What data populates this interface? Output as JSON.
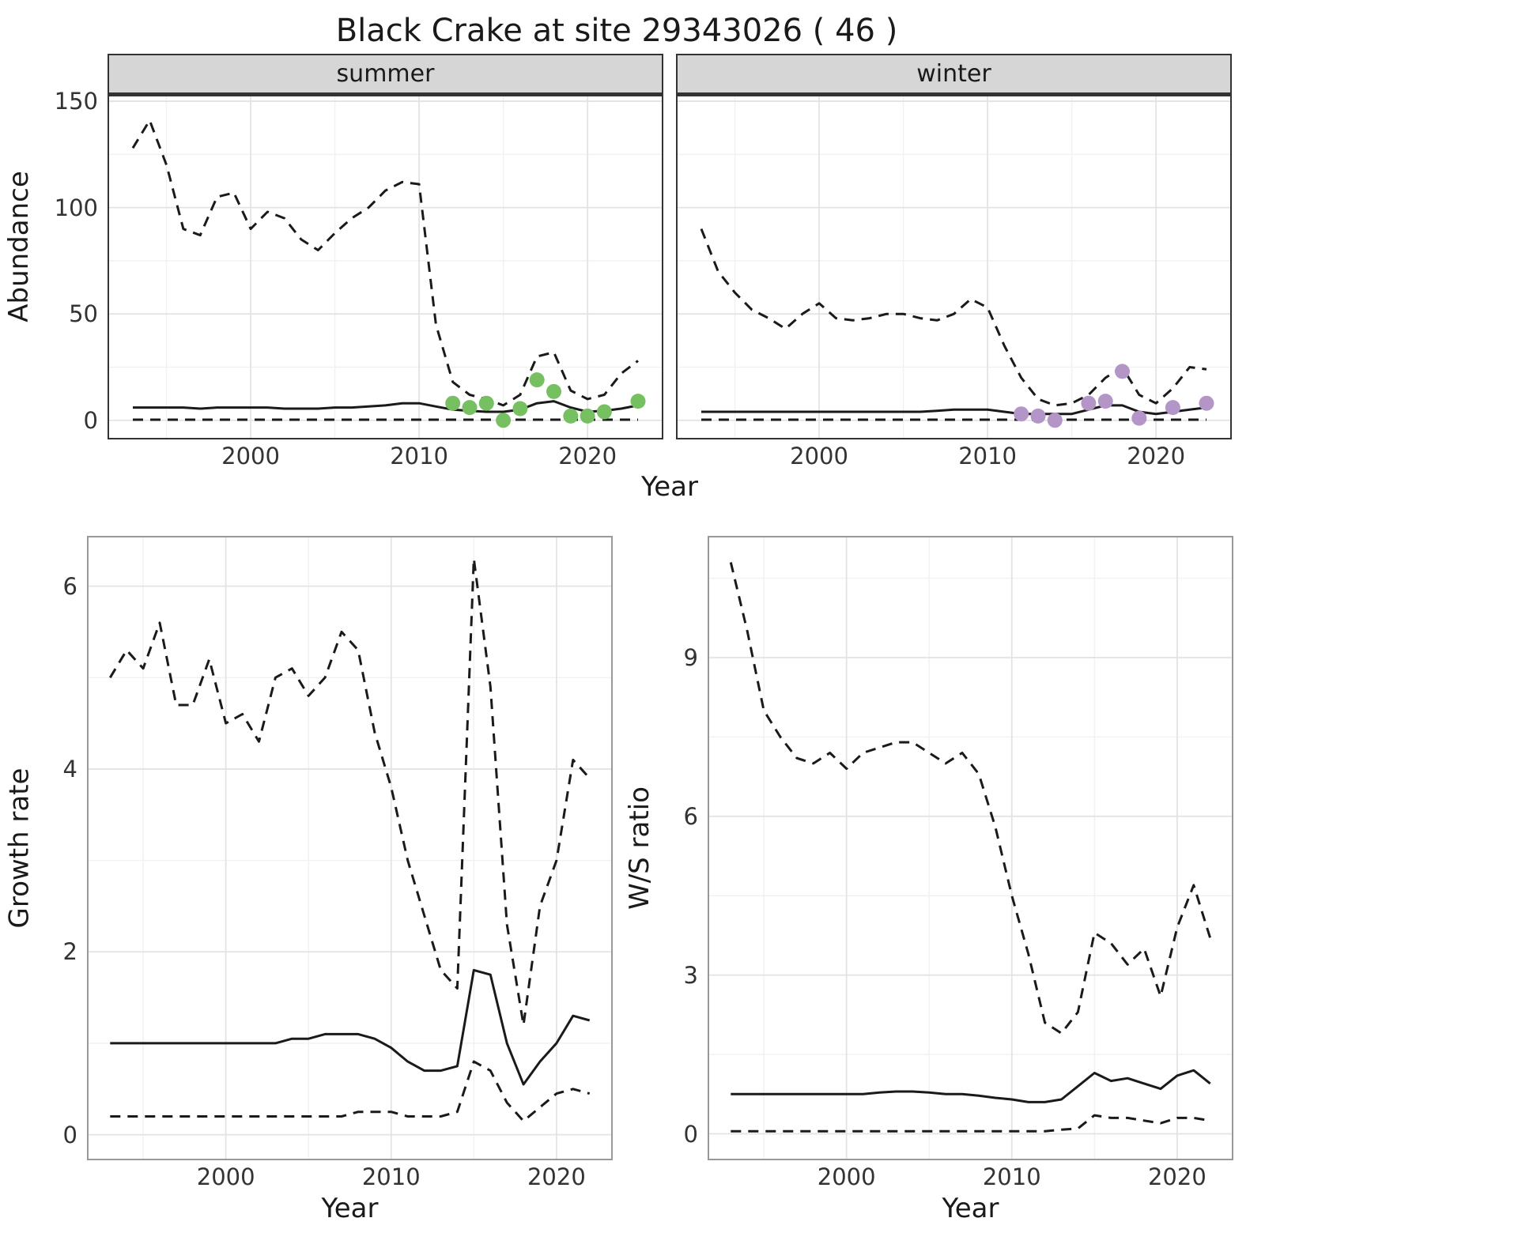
{
  "page_title": "Black Crake at site 29343026 ( 46 )",
  "colors": {
    "background": "#ffffff",
    "line": "#1a1a1a",
    "grid_major": "#e3e3e3",
    "grid_minor": "#f1f1f1",
    "strip_bg": "#d6d6d6",
    "strip_border": "#333333",
    "tick_text": "#333333",
    "summer_point": "#77c062",
    "winter_point": "#b495c8"
  },
  "chart_data": [
    {
      "id": "abundance-summer",
      "type": "line",
      "facet_label": "summer",
      "xlabel": "Year",
      "ylabel": "Abundance",
      "xlim": [
        1991.5,
        2024.5
      ],
      "ylim": [
        -9,
        153
      ],
      "xticks": [
        2000,
        2010,
        2020
      ],
      "yticks": [
        0,
        50,
        100,
        150
      ],
      "border": "#333333",
      "x": [
        1993,
        1994,
        1995,
        1996,
        1997,
        1998,
        1999,
        2000,
        2001,
        2002,
        2003,
        2004,
        2005,
        2006,
        2007,
        2008,
        2009,
        2010,
        2011,
        2012,
        2013,
        2014,
        2015,
        2016,
        2017,
        2018,
        2019,
        2020,
        2021,
        2022,
        2023
      ],
      "series": [
        {
          "name": "upper_ci",
          "linestyle": "dashed",
          "values": [
            128,
            141,
            120,
            90,
            87,
            105,
            107,
            90,
            98,
            95,
            85,
            80,
            88,
            95,
            100,
            108,
            112,
            111,
            45,
            18,
            12,
            10,
            7,
            12,
            30,
            32,
            14,
            10,
            12,
            22,
            28
          ]
        },
        {
          "name": "median",
          "linestyle": "solid",
          "values": [
            6,
            6,
            6,
            6,
            5.5,
            6,
            6,
            6,
            6,
            5.5,
            5.5,
            5.5,
            6,
            6,
            6.5,
            7,
            8,
            8,
            6.5,
            5,
            4.5,
            4,
            4,
            5,
            8,
            9,
            6,
            4,
            4.5,
            5.5,
            7
          ]
        },
        {
          "name": "lower_ci",
          "linestyle": "dashed",
          "values": [
            0.3,
            0.3,
            0.3,
            0.3,
            0.3,
            0.3,
            0.3,
            0.3,
            0.3,
            0.3,
            0.3,
            0.3,
            0.3,
            0.3,
            0.3,
            0.3,
            0.3,
            0.3,
            0.3,
            0.3,
            0.3,
            0.3,
            0.3,
            0.3,
            0.3,
            0.3,
            0.3,
            0.3,
            0.3,
            0.3,
            0.3
          ]
        }
      ],
      "points": {
        "name": "observed-counts",
        "color": "#77c062",
        "x": [
          2012,
          2013,
          2014,
          2015,
          2016,
          2017,
          2018,
          2019,
          2020,
          2021,
          2023
        ],
        "y": [
          8,
          6,
          8,
          0,
          5.5,
          19,
          13.5,
          2,
          2,
          4,
          9
        ]
      }
    },
    {
      "id": "abundance-winter",
      "type": "line",
      "facet_label": "winter",
      "xlabel": "Year",
      "ylabel": "Abundance",
      "xlim": [
        1991.5,
        2024.5
      ],
      "ylim": [
        -9,
        153
      ],
      "xticks": [
        2000,
        2010,
        2020
      ],
      "yticks": [
        0,
        50,
        100,
        150
      ],
      "border": "#333333",
      "x": [
        1993,
        1994,
        1995,
        1996,
        1997,
        1998,
        1999,
        2000,
        2001,
        2002,
        2003,
        2004,
        2005,
        2006,
        2007,
        2008,
        2009,
        2010,
        2011,
        2012,
        2013,
        2014,
        2015,
        2016,
        2017,
        2018,
        2019,
        2020,
        2021,
        2022,
        2023
      ],
      "series": [
        {
          "name": "upper_ci",
          "linestyle": "dashed",
          "values": [
            90,
            70,
            60,
            52,
            48,
            43,
            50,
            55,
            48,
            47,
            48,
            50,
            50,
            48,
            47,
            50,
            57,
            53,
            35,
            20,
            10,
            7,
            8,
            12,
            20,
            25,
            12,
            8,
            15,
            25,
            24
          ]
        },
        {
          "name": "median",
          "linestyle": "solid",
          "values": [
            4,
            4,
            4,
            4,
            4,
            4,
            4,
            4,
            4,
            4,
            4,
            4,
            4,
            4,
            4.5,
            5,
            5,
            5,
            4,
            3,
            3,
            3,
            3,
            5,
            7,
            7,
            4,
            3,
            4,
            5,
            6
          ]
        },
        {
          "name": "lower_ci",
          "linestyle": "dashed",
          "values": [
            0.3,
            0.3,
            0.3,
            0.3,
            0.3,
            0.3,
            0.3,
            0.3,
            0.3,
            0.3,
            0.3,
            0.3,
            0.3,
            0.3,
            0.3,
            0.3,
            0.3,
            0.3,
            0.3,
            0.3,
            0.3,
            0.3,
            0.3,
            0.3,
            0.3,
            0.3,
            0.3,
            0.3,
            0.3,
            0.3,
            0.3
          ]
        }
      ],
      "points": {
        "name": "observed-counts",
        "color": "#b495c8",
        "x": [
          2012,
          2013,
          2014,
          2016,
          2017,
          2018,
          2019,
          2021,
          2023
        ],
        "y": [
          3,
          2,
          0,
          8,
          9,
          23,
          1,
          6,
          8
        ]
      }
    },
    {
      "id": "growth-rate",
      "type": "line",
      "xlabel": "Year",
      "ylabel": "Growth rate",
      "xlim": [
        1991.6,
        2023.4
      ],
      "ylim": [
        -0.28,
        6.55
      ],
      "xticks": [
        2000,
        2010,
        2020
      ],
      "yticks": [
        0,
        2,
        4,
        6
      ],
      "border": "#999999",
      "x": [
        1993,
        1994,
        1995,
        1996,
        1997,
        1998,
        1999,
        2000,
        2001,
        2002,
        2003,
        2004,
        2005,
        2006,
        2007,
        2008,
        2009,
        2010,
        2011,
        2012,
        2013,
        2014,
        2015,
        2016,
        2017,
        2018,
        2019,
        2020,
        2021,
        2022
      ],
      "series": [
        {
          "name": "upper_ci",
          "linestyle": "dashed",
          "values": [
            5.0,
            5.3,
            5.1,
            5.6,
            4.7,
            4.7,
            5.2,
            4.5,
            4.6,
            4.3,
            5.0,
            5.1,
            4.8,
            5.0,
            5.5,
            5.3,
            4.4,
            3.8,
            3.0,
            2.4,
            1.8,
            1.6,
            6.3,
            4.9,
            2.3,
            1.2,
            2.5,
            3.0,
            4.1,
            3.9
          ]
        },
        {
          "name": "median",
          "linestyle": "solid",
          "values": [
            1.0,
            1.0,
            1.0,
            1.0,
            1.0,
            1.0,
            1.0,
            1.0,
            1.0,
            1.0,
            1.0,
            1.05,
            1.05,
            1.1,
            1.1,
            1.1,
            1.05,
            0.95,
            0.8,
            0.7,
            0.7,
            0.75,
            1.8,
            1.75,
            1.0,
            0.55,
            0.8,
            1.0,
            1.3,
            1.25
          ]
        },
        {
          "name": "lower_ci",
          "linestyle": "dashed",
          "values": [
            0.2,
            0.2,
            0.2,
            0.2,
            0.2,
            0.2,
            0.2,
            0.2,
            0.2,
            0.2,
            0.2,
            0.2,
            0.2,
            0.2,
            0.2,
            0.25,
            0.25,
            0.25,
            0.2,
            0.2,
            0.2,
            0.25,
            0.8,
            0.7,
            0.35,
            0.15,
            0.3,
            0.45,
            0.5,
            0.45
          ]
        }
      ]
    },
    {
      "id": "ws-ratio",
      "type": "line",
      "xlabel": "Year",
      "ylabel": "W/S ratio",
      "xlim": [
        1991.6,
        2023.4
      ],
      "ylim": [
        -0.5,
        11.3
      ],
      "xticks": [
        2000,
        2010,
        2020
      ],
      "yticks": [
        0,
        3,
        6,
        9
      ],
      "border": "#999999",
      "x": [
        1993,
        1994,
        1995,
        1996,
        1997,
        1998,
        1999,
        2000,
        2001,
        2002,
        2003,
        2004,
        2005,
        2006,
        2007,
        2008,
        2009,
        2010,
        2011,
        2012,
        2013,
        2014,
        2015,
        2016,
        2017,
        2018,
        2019,
        2020,
        2021,
        2022
      ],
      "series": [
        {
          "name": "upper_ci",
          "linestyle": "dashed",
          "values": [
            10.8,
            9.5,
            8.0,
            7.5,
            7.1,
            7.0,
            7.2,
            6.9,
            7.2,
            7.3,
            7.4,
            7.4,
            7.2,
            7.0,
            7.2,
            6.8,
            5.8,
            4.5,
            3.4,
            2.1,
            1.9,
            2.3,
            3.8,
            3.6,
            3.2,
            3.5,
            2.6,
            3.9,
            4.7,
            3.7
          ]
        },
        {
          "name": "median",
          "linestyle": "solid",
          "values": [
            0.75,
            0.75,
            0.75,
            0.75,
            0.75,
            0.75,
            0.75,
            0.75,
            0.75,
            0.78,
            0.8,
            0.8,
            0.78,
            0.75,
            0.75,
            0.72,
            0.68,
            0.65,
            0.6,
            0.6,
            0.65,
            0.9,
            1.15,
            1.0,
            1.05,
            0.95,
            0.85,
            1.1,
            1.2,
            0.95
          ]
        },
        {
          "name": "lower_ci",
          "linestyle": "dashed",
          "values": [
            0.05,
            0.05,
            0.05,
            0.05,
            0.05,
            0.05,
            0.05,
            0.05,
            0.05,
            0.05,
            0.05,
            0.05,
            0.05,
            0.05,
            0.05,
            0.05,
            0.05,
            0.05,
            0.05,
            0.05,
            0.08,
            0.1,
            0.35,
            0.3,
            0.3,
            0.25,
            0.2,
            0.3,
            0.3,
            0.25
          ]
        }
      ]
    }
  ]
}
